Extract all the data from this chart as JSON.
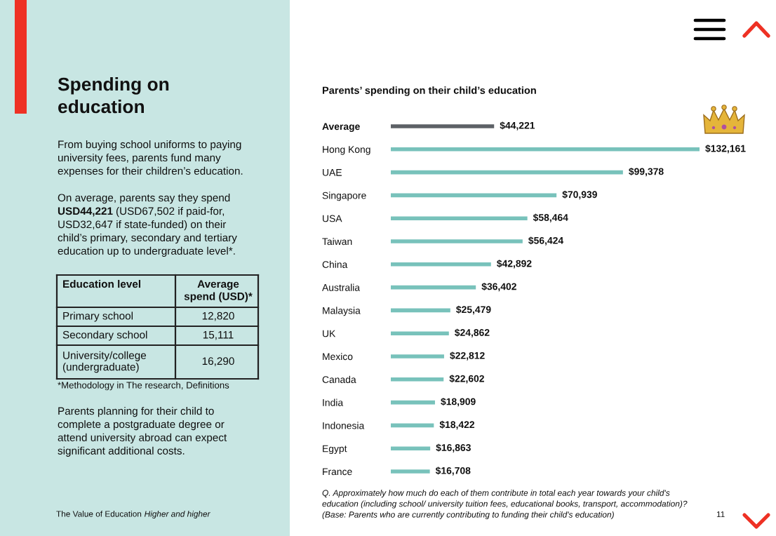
{
  "chart_data": [
    {
      "type": "other",
      "title": "Spending on\neducation",
      "annotations": [
        "From buying school uniforms to paying\nuniversity fees, parents fund many\nexpenses for their children’s education.",
        "On average, parents say they spend",
        "USD44,221",
        "(USD67,502 if paid-for,",
        "USD32,647 if state-funded) on their\nchild’s primary, secondary and tertiary\neducation up to undergraduate level*.",
        "*Methodology in The research, Definitions",
        "Parents planning for their child to\ncomplete a postgraduate degree or\nattend university abroad can expect\nsignificant additional costs.",
        "The Value of Education",
        "Higher and higher"
      ],
      "xlabel": "Education level",
      "ylabel": "Average\nspend (USD)*",
      "categories": [
        "Primary school",
        "Secondary school",
        "University/college\n(undergraduate)"
      ],
      "values": [
        12820,
        15111,
        16290
      ],
      "value_labels": [
        "12,820",
        "15,111",
        "16,290"
      ]
    },
    {
      "type": "bar",
      "orientation": "horizontal",
      "title": "Parents’ spending on their child’s education",
      "categories": [
        "Average",
        "Hong Kong",
        "UAE",
        "Singapore",
        "USA",
        "Taiwan",
        "China",
        "Australia",
        "Malaysia",
        "UK",
        "Mexico",
        "Canada",
        "India",
        "Indonesia",
        "Egypt",
        "France"
      ],
      "values": [
        44221,
        132161,
        99378,
        70939,
        58464,
        56424,
        42892,
        36402,
        25479,
        24862,
        22812,
        22602,
        18909,
        18422,
        16863,
        16708
      ],
      "colors": [
        "#5d6166",
        "#78c2bb",
        "#78c2bb",
        "#78c2bb",
        "#78c2bb",
        "#78c2bb",
        "#78c2bb",
        "#78c2bb",
        "#78c2bb",
        "#78c2bb",
        "#78c2bb",
        "#78c2bb",
        "#78c2bb",
        "#78c2bb",
        "#78c2bb",
        "#78c2bb"
      ],
      "value_labels": [
        "$44,221",
        "$132,161",
        "$99,378",
        "$70,939",
        "$58,464",
        "$56,424",
        "$42,892",
        "$36,402",
        "$25,479",
        "$24,862",
        "$22,812",
        "$22,602",
        "$18,909",
        "$18,422",
        "$16,863",
        "$16,708"
      ],
      "annotations": [
        "Q. Approximately how much do each of them contribute in total each year towards your child's\neducation (including school/ university tuition fees, educational books, transport, accommodation)?\n(Base: Parents who are currently contributing to funding their child's education)",
        "11"
      ]
    }
  ]
}
